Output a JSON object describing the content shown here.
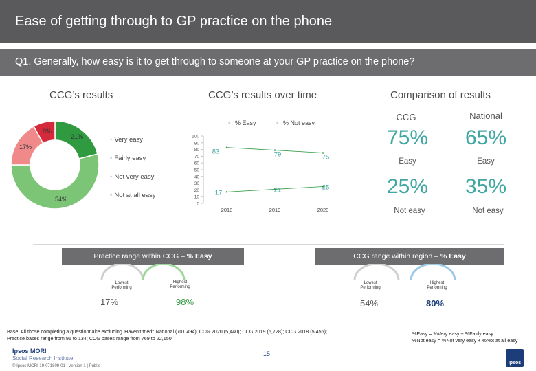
{
  "header": {
    "title": "Ease of getting through to GP practice on the phone",
    "question": "Q1. Generally, how easy is it to get through to someone at your GP practice on the phone?"
  },
  "sections": {
    "ccg_results": "CCG’s results",
    "over_time": "CCG’s results over time",
    "comparison": "Comparison of results"
  },
  "colors": {
    "very_easy": "#2f9a3f",
    "fairly_easy": "#7cc576",
    "not_very_easy": "#f08a8a",
    "not_at_all_easy": "#d42a3b",
    "accent": "#40a7a2",
    "bar": "#6d6d70",
    "line": "#2f9a3f"
  },
  "chart_data": [
    {
      "type": "pie",
      "donut": true,
      "slices": [
        {
          "name": "Very easy",
          "value": 21,
          "label": "21%"
        },
        {
          "name": "Fairly easy",
          "value": 54,
          "label": "54%"
        },
        {
          "name": "Not very easy",
          "value": 17,
          "label": "17%"
        },
        {
          "name": "Not at all easy",
          "value": 8,
          "label": "8%"
        }
      ],
      "legend": [
        "Very easy",
        "Fairly easy",
        "Not very easy",
        "Not at all easy"
      ],
      "legend_placement": "right"
    },
    {
      "type": "line",
      "x": [
        "2018",
        "2019",
        "2020"
      ],
      "ylim": [
        0,
        100
      ],
      "yticks": [
        "0",
        "10",
        "20",
        "30",
        "40",
        "50",
        "60",
        "70",
        "80",
        "90",
        "100"
      ],
      "series": [
        {
          "name": "% Easy",
          "values": [
            83,
            79,
            75
          ],
          "labels": [
            "83",
            "79",
            "75"
          ]
        },
        {
          "name": "% Not easy",
          "values": [
            17,
            21,
            25
          ],
          "labels": [
            "17",
            "21",
            "25"
          ]
        }
      ],
      "legend_placement": "top"
    }
  ],
  "comparison": {
    "ccg_label": "CCG",
    "national_label": "National",
    "ccg_easy": "75%",
    "national_easy": "65%",
    "easy_label": "Easy",
    "ccg_not_easy": "25%",
    "national_not_easy": "35%",
    "not_easy_label": "Not easy"
  },
  "practice_range": {
    "title": "Practice range within CCG – ",
    "title_bold": "% Easy",
    "lowest_label": "Lowest\nPerforming",
    "highest_label": "Highest\nPerforming",
    "lowest": "17%",
    "highest": "98%"
  },
  "ccg_range": {
    "title": "CCG range within region – ",
    "title_bold": "% Easy",
    "lowest_label": "Lowest\nPerforming",
    "highest_label": "Highest\nPerforming",
    "lowest": "54%",
    "highest": "80%"
  },
  "footer": {
    "base_line1": "Base: All those completing a questionnaire excluding 'Haven't tried': National (701,494); CCG 2020 (5,440); CCG 2019 (5,728); CCG 2018 (5,456);",
    "base_line2": "Practice bases range from 91 to 134; CCG bases range from 769 to 22,150",
    "def_line1": "%Easy = %Very easy + %Fairly easy",
    "def_line2": "%Not easy = %Not very easy + %Not at all easy",
    "logo_a": "Ipsos MORI",
    "logo_b": "Social Research Institute",
    "copyright": "© Ipsos MORI    19-071809-01 | Version 1 | Public",
    "page": "15",
    "ipsos": "Ipsos"
  }
}
